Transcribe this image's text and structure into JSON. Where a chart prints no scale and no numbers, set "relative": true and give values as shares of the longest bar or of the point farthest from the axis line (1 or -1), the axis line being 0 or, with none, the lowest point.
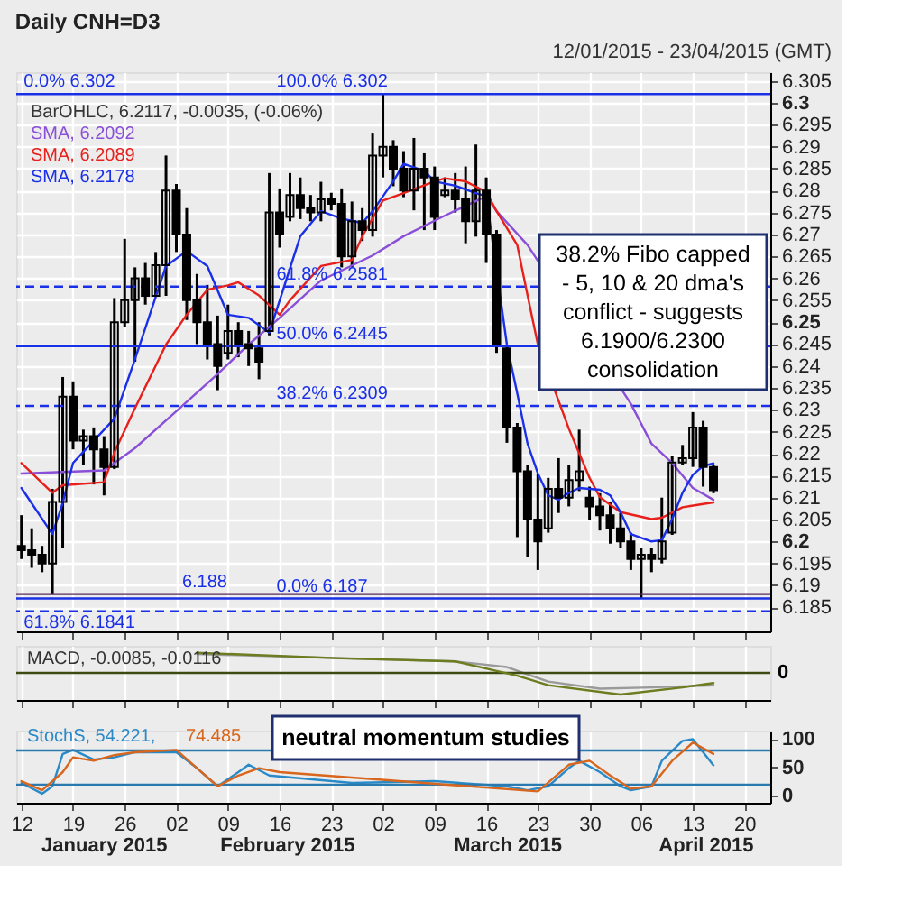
{
  "chart_data": [
    {
      "type": "candlestick",
      "title": "Daily CNH=D3",
      "subtitle": "12/01/2015 - 23/04/2015 (GMT)",
      "categories": [
        "12",
        null,
        null,
        null,
        null,
        "19",
        null,
        null,
        null,
        null,
        "26",
        null,
        null,
        null,
        null,
        "02",
        null,
        null,
        null,
        null,
        "09",
        null,
        null,
        null,
        null,
        "16",
        null,
        null,
        null,
        null,
        "23",
        null,
        null,
        null,
        null,
        "02",
        null,
        null,
        null,
        null,
        "09",
        null,
        null,
        null,
        null,
        "16",
        null,
        null,
        null,
        null,
        "23",
        null,
        null,
        null,
        null,
        "30",
        null,
        null,
        null,
        null,
        "06",
        null,
        null,
        null,
        null,
        "13",
        null,
        null,
        null,
        null,
        "20",
        null,
        null
      ],
      "ohlc": [
        [
          6.199,
          6.206,
          6.196,
          6.198
        ],
        [
          6.198,
          6.203,
          6.194,
          6.197
        ],
        [
          6.197,
          6.199,
          6.193,
          6.195
        ],
        [
          6.195,
          6.212,
          6.188,
          6.209
        ],
        [
          6.209,
          6.2375,
          6.1985,
          6.233
        ],
        [
          6.233,
          6.2365,
          6.221,
          6.223
        ],
        [
          6.223,
          6.2255,
          6.2175,
          6.224
        ],
        [
          6.224,
          6.226,
          6.213,
          6.221
        ],
        [
          6.221,
          6.224,
          6.2105,
          6.217
        ],
        [
          6.217,
          6.2555,
          6.2165,
          6.25
        ],
        [
          6.25,
          6.269,
          6.249,
          6.255
        ],
        [
          6.255,
          6.2625,
          6.241,
          6.26
        ],
        [
          6.26,
          6.2635,
          6.254,
          6.256
        ],
        [
          6.256,
          6.266,
          6.256,
          6.263
        ],
        [
          6.263,
          6.288,
          6.256,
          6.28
        ],
        [
          6.28,
          6.2815,
          6.266,
          6.27
        ],
        [
          6.27,
          6.276,
          6.2505,
          6.255
        ],
        [
          6.255,
          6.261,
          6.245,
          6.25
        ],
        [
          6.25,
          6.2585,
          6.2415,
          6.245
        ],
        [
          6.245,
          6.2515,
          6.2345,
          6.24
        ],
        [
          6.243,
          6.254,
          6.2415,
          6.248
        ],
        [
          6.248,
          6.25,
          6.242,
          6.245
        ],
        [
          6.245,
          6.248,
          6.24,
          6.244
        ],
        [
          6.244,
          6.25,
          6.237,
          6.241
        ],
        [
          6.248,
          6.284,
          6.247,
          6.275
        ],
        [
          6.275,
          6.2805,
          6.267,
          6.27
        ],
        [
          6.274,
          6.284,
          6.273,
          6.279
        ],
        [
          6.279,
          6.283,
          6.2735,
          6.276
        ],
        [
          6.276,
          6.279,
          6.273,
          6.275
        ],
        [
          6.275,
          6.282,
          6.273,
          6.278
        ],
        [
          6.278,
          6.2795,
          6.2755,
          6.277
        ],
        [
          6.277,
          6.2805,
          6.2625,
          6.265
        ],
        [
          6.265,
          6.2775,
          6.2625,
          6.273
        ],
        [
          6.273,
          6.276,
          6.2685,
          6.271
        ],
        [
          6.271,
          6.293,
          6.2695,
          6.288
        ],
        [
          6.288,
          6.302,
          6.283,
          6.29
        ],
        [
          6.29,
          6.2915,
          6.281,
          6.285
        ],
        [
          6.285,
          6.289,
          6.2785,
          6.28
        ],
        [
          6.28,
          6.292,
          6.2755,
          6.285
        ],
        [
          6.285,
          6.2885,
          6.271,
          6.283
        ],
        [
          6.283,
          6.2855,
          6.271,
          6.274
        ],
        [
          6.279,
          6.283,
          6.2785,
          6.28
        ],
        [
          6.28,
          6.284,
          6.275,
          6.278
        ],
        [
          6.278,
          6.2855,
          6.268,
          6.273
        ],
        [
          6.273,
          6.2905,
          6.2695,
          6.28
        ],
        [
          6.28,
          6.283,
          6.2635,
          6.27
        ],
        [
          6.27,
          6.271,
          6.243,
          6.245
        ],
        [
          6.244,
          6.2445,
          6.2225,
          6.226
        ],
        [
          6.226,
          6.227,
          6.201,
          6.216
        ],
        [
          6.216,
          6.2175,
          6.1965,
          6.205
        ],
        [
          6.205,
          6.2155,
          6.1935,
          6.2
        ],
        [
          6.203,
          6.2145,
          6.202,
          6.212
        ],
        [
          6.212,
          6.219,
          6.2065,
          6.21
        ],
        [
          6.21,
          6.2175,
          6.208,
          6.214
        ],
        [
          6.214,
          6.2255,
          6.2115,
          6.216
        ],
        [
          6.21,
          6.2125,
          6.205,
          6.208
        ],
        [
          6.208,
          6.211,
          6.2025,
          6.206
        ],
        [
          6.206,
          6.209,
          6.1995,
          6.203
        ],
        [
          6.203,
          6.2065,
          6.1985,
          6.2
        ],
        [
          6.2,
          6.202,
          6.1935,
          6.196
        ],
        [
          6.196,
          6.1985,
          6.187,
          6.197
        ],
        [
          6.197,
          6.1985,
          6.193,
          6.196
        ],
        [
          6.196,
          6.21,
          6.195,
          6.2
        ],
        [
          6.202,
          6.2195,
          6.2015,
          6.218
        ],
        [
          6.218,
          6.222,
          6.2175,
          6.219
        ],
        [
          6.219,
          6.2295,
          6.217,
          6.226
        ],
        [
          6.226,
          6.2275,
          6.2125,
          6.217
        ],
        [
          6.217,
          6.2175,
          6.211,
          6.2117
        ],
        null,
        null,
        null,
        null,
        null
      ],
      "series": [
        {
          "name": "SMA, 6.2092",
          "type": "line",
          "color": "#8a4fd8",
          "values": [
            6.2155,
            null,
            null,
            null,
            null,
            null,
            null,
            null,
            6.2162,
            null,
            null,
            6.2213,
            null,
            null,
            null,
            6.2297,
            null,
            null,
            null,
            6.2382,
            null,
            null,
            6.2449,
            null,
            null,
            6.251,
            null,
            null,
            null,
            6.2595,
            null,
            null,
            null,
            null,
            6.2652,
            null,
            null,
            6.2696,
            null,
            null,
            null,
            6.2743,
            null,
            null,
            null,
            6.2787,
            6.2753,
            null,
            null,
            6.2676,
            null,
            null,
            null,
            null,
            null,
            null,
            null,
            null,
            null,
            6.2314,
            null,
            6.2223,
            null,
            6.2179,
            null,
            6.2122,
            null,
            6.2095,
            null,
            null,
            null,
            null,
            null
          ]
        },
        {
          "name": "SMA, 6.2089",
          "type": "line",
          "color": "#e8201c",
          "values": [
            6.2179,
            null,
            null,
            6.2111,
            6.2128,
            null,
            null,
            null,
            6.2135,
            6.2203,
            null,
            6.2304,
            null,
            null,
            6.2449,
            null,
            6.2517,
            null,
            6.2574,
            null,
            6.2584,
            6.2591,
            null,
            6.2561,
            null,
            6.2517,
            6.255,
            null,
            null,
            6.2628,
            null,
            null,
            6.2642,
            6.2696,
            null,
            6.2777,
            null,
            6.2794,
            null,
            null,
            6.2821,
            6.2828,
            null,
            6.2821,
            null,
            6.2797,
            6.2753,
            null,
            6.2676,
            6.2561,
            6.2449,
            null,
            null,
            6.2257,
            null,
            6.2145,
            6.2101,
            null,
            6.2067,
            null,
            null,
            6.2051,
            6.2054,
            null,
            6.2078,
            null,
            null,
            6.2089,
            null,
            null,
            null,
            null,
            null
          ]
        },
        {
          "name": "SMA, 6.2178",
          "type": "line",
          "color": "#1a2fe8",
          "values": [
            6.2122,
            null,
            null,
            6.2017,
            6.2088,
            6.2179,
            null,
            null,
            null,
            6.228,
            null,
            6.2416,
            null,
            null,
            6.2628,
            null,
            6.2662,
            null,
            6.2628,
            null,
            6.2517,
            null,
            6.251,
            null,
            6.2476,
            null,
            null,
            6.2696,
            null,
            6.2753,
            null,
            6.2736,
            null,
            6.2726,
            6.2753,
            null,
            6.2821,
            6.2861,
            null,
            6.2845,
            6.2821,
            null,
            6.2811,
            null,
            6.2794,
            6.2787,
            null,
            6.2449,
            6.2338,
            6.2223,
            6.2155,
            6.2105,
            6.2095,
            6.2111,
            6.2122,
            null,
            6.2118,
            6.2105,
            6.2067,
            6.2017,
            null,
            6.2,
            6.2003,
            6.2051,
            6.2111,
            6.2152,
            6.2172,
            6.2178,
            null,
            null,
            null,
            null,
            null
          ]
        }
      ],
      "ylim": [
        6.1795,
        6.307
      ],
      "yticks": [
        6.185,
        6.19,
        6.195,
        6.2,
        6.205,
        6.21,
        6.215,
        6.22,
        6.225,
        6.23,
        6.235,
        6.24,
        6.245,
        6.25,
        6.255,
        6.26,
        6.265,
        6.27,
        6.275,
        6.28,
        6.285,
        6.29,
        6.295,
        6.3,
        6.305
      ],
      "tick_labels": "y",
      "grid": true,
      "legend": "top left",
      "marker": "none",
      "line_style": "solid",
      "ref_lines": [
        {
          "axis": "y",
          "value": 6.302,
          "color": "#1a2fe8"
        },
        {
          "axis": "y",
          "value": 6.2581,
          "color": "#1a2fe8",
          "line_style": "dashed"
        },
        {
          "axis": "y",
          "value": 6.2445,
          "color": "#1a2fe8"
        },
        {
          "axis": "y",
          "value": 6.2309,
          "color": "#1a2fe8",
          "line_style": "dashed"
        },
        {
          "axis": "y",
          "value": 6.188,
          "color": "#5a2a5a"
        },
        {
          "axis": "y",
          "value": 6.187,
          "color": "#1a2fe8"
        },
        {
          "axis": "y",
          "value": 6.1841,
          "color": "#1a2fe8",
          "line_style": "dashed"
        }
      ],
      "annotations": [
        "BarOHLC, 6.2117, -0.0035, (-0.06%)",
        "38.2% Fibo capped\n- 5, 10 & 20 dma's\nconflict - suggests\n6.1900/6.2300\nconsolidation",
        {
          "text": "0.0%  6.302",
          "y": 6.302
        },
        {
          "text": "100.0%  6.302",
          "y": 6.302
        },
        {
          "text": "61.8%  6.2581",
          "y": 6.2581
        },
        {
          "text": "50.0%  6.2445",
          "y": 6.2445
        },
        {
          "text": "38.2%  6.2309",
          "y": 6.2309
        },
        {
          "text": "6.188",
          "y": 6.188
        },
        {
          "text": "0.0%  6.187",
          "y": 6.187
        },
        {
          "text": "61.8%  6.1841",
          "y": 6.1841
        }
      ]
    },
    {
      "type": "line",
      "relative": true,
      "tick_labels": false,
      "grid": "x",
      "categories": [
        "12",
        null,
        null,
        null,
        null,
        "19",
        null,
        null,
        null,
        null,
        "26",
        null,
        null,
        null,
        null,
        "02",
        null,
        null,
        null,
        null,
        "09",
        null,
        null,
        null,
        null,
        "16",
        null,
        null,
        null,
        null,
        "23",
        null,
        null,
        null,
        null,
        "02",
        null,
        null,
        null,
        null,
        "09",
        null,
        null,
        null,
        null,
        "16",
        null,
        null,
        null,
        null,
        "23",
        null,
        null,
        null,
        null,
        "30",
        null,
        null,
        null,
        null,
        "06",
        null,
        null,
        null,
        null,
        "13",
        null,
        null,
        null,
        null,
        "20",
        null,
        null
      ],
      "series": [
        {
          "color": "#9a9a9a",
          "values": [
            null,
            null,
            null,
            null,
            null,
            null,
            null,
            null,
            null,
            null,
            null,
            null,
            null,
            null,
            null,
            null,
            null,
            0.87,
            null,
            null,
            null,
            null,
            null,
            null,
            null,
            null,
            null,
            null,
            null,
            null,
            null,
            null,
            null,
            null,
            null,
            null,
            null,
            null,
            null,
            null,
            null,
            null,
            0.53,
            null,
            null,
            null,
            null,
            0.27,
            null,
            null,
            null,
            -0.4,
            null,
            null,
            null,
            null,
            -0.73,
            null,
            null,
            null,
            null,
            -0.67,
            null,
            null,
            null,
            null,
            null,
            -0.57,
            null,
            null,
            null,
            null,
            null
          ]
        },
        {
          "color": "#6b7d1e",
          "values": [
            null,
            null,
            null,
            null,
            null,
            null,
            null,
            null,
            null,
            null,
            null,
            null,
            null,
            null,
            null,
            null,
            null,
            0.93,
            null,
            null,
            null,
            null,
            null,
            null,
            null,
            null,
            null,
            null,
            null,
            null,
            null,
            0.67,
            null,
            null,
            null,
            null,
            null,
            null,
            null,
            null,
            null,
            null,
            0.53,
            null,
            null,
            null,
            null,
            null,
            -0.13,
            null,
            null,
            -0.57,
            null,
            null,
            null,
            null,
            null,
            null,
            -1,
            null,
            null,
            null,
            null,
            null,
            -0.67,
            null,
            null,
            -0.47,
            null,
            null,
            null,
            null,
            null
          ]
        }
      ],
      "ref_lines": [
        {
          "axis": "y",
          "value": 0,
          "label": "0",
          "color": "#3d4a10"
        }
      ],
      "annotations": [
        "MACD, -0.0085, -0.0116"
      ]
    },
    {
      "type": "line",
      "grid": "x",
      "legend": "top left",
      "categories": [
        "12",
        null,
        null,
        null,
        null,
        "19",
        null,
        null,
        null,
        null,
        "26",
        null,
        null,
        null,
        null,
        "02",
        null,
        null,
        null,
        null,
        "09",
        null,
        null,
        null,
        null,
        "16",
        null,
        null,
        null,
        null,
        "23",
        null,
        null,
        null,
        null,
        "02",
        null,
        null,
        null,
        null,
        "09",
        null,
        null,
        null,
        null,
        "16",
        null,
        null,
        null,
        null,
        "23",
        null,
        null,
        null,
        null,
        "30",
        null,
        null,
        null,
        null,
        "06",
        null,
        null,
        null,
        null,
        "13",
        null,
        null,
        null,
        null,
        "20",
        null,
        null
      ],
      "ylim": [
        -12,
        115
      ],
      "yticks": [
        0,
        50,
        100
      ],
      "series": [
        {
          "name": "StochS, 54.221,",
          "color": "#2a8ac8",
          "values": [
            23,
            null,
            4,
            17,
            74,
            81,
            null,
            64,
            null,
            68,
            null,
            77,
            null,
            null,
            null,
            77,
            null,
            49,
            null,
            17,
            null,
            42,
            55,
            null,
            36,
            null,
            null,
            null,
            null,
            null,
            null,
            null,
            23,
            null,
            null,
            null,
            null,
            null,
            null,
            null,
            26,
            null,
            null,
            null,
            null,
            null,
            null,
            17,
            null,
            10,
            null,
            17,
            null,
            49,
            62,
            null,
            42,
            null,
            17,
            10,
            null,
            17,
            62,
            null,
            97,
            100,
            null,
            54,
            null,
            null,
            null,
            null,
            null
          ]
        },
        {
          "name": "74.485",
          "color": "#d8661c",
          "values": [
            26,
            null,
            10,
            null,
            42,
            68,
            null,
            62,
            null,
            72,
            null,
            77,
            null,
            null,
            null,
            81,
            null,
            49,
            null,
            17,
            null,
            36,
            null,
            49,
            null,
            42,
            null,
            null,
            null,
            null,
            null,
            null,
            null,
            null,
            null,
            null,
            null,
            null,
            null,
            null,
            null,
            null,
            null,
            null,
            null,
            null,
            null,
            null,
            null,
            null,
            8,
            null,
            null,
            55,
            null,
            62,
            null,
            36,
            null,
            13,
            null,
            17,
            null,
            62,
            null,
            94,
            null,
            74,
            null,
            null,
            null,
            null,
            null
          ]
        }
      ],
      "ref_lines": [
        {
          "axis": "y",
          "value": 80,
          "color": "#2a7ab0"
        },
        {
          "axis": "y",
          "value": 20,
          "color": "#2a7ab0"
        }
      ],
      "annotations": [
        "neutral momentum studies",
        "January 2015",
        "February 2015",
        "March 2015",
        "April 2015"
      ]
    }
  ]
}
